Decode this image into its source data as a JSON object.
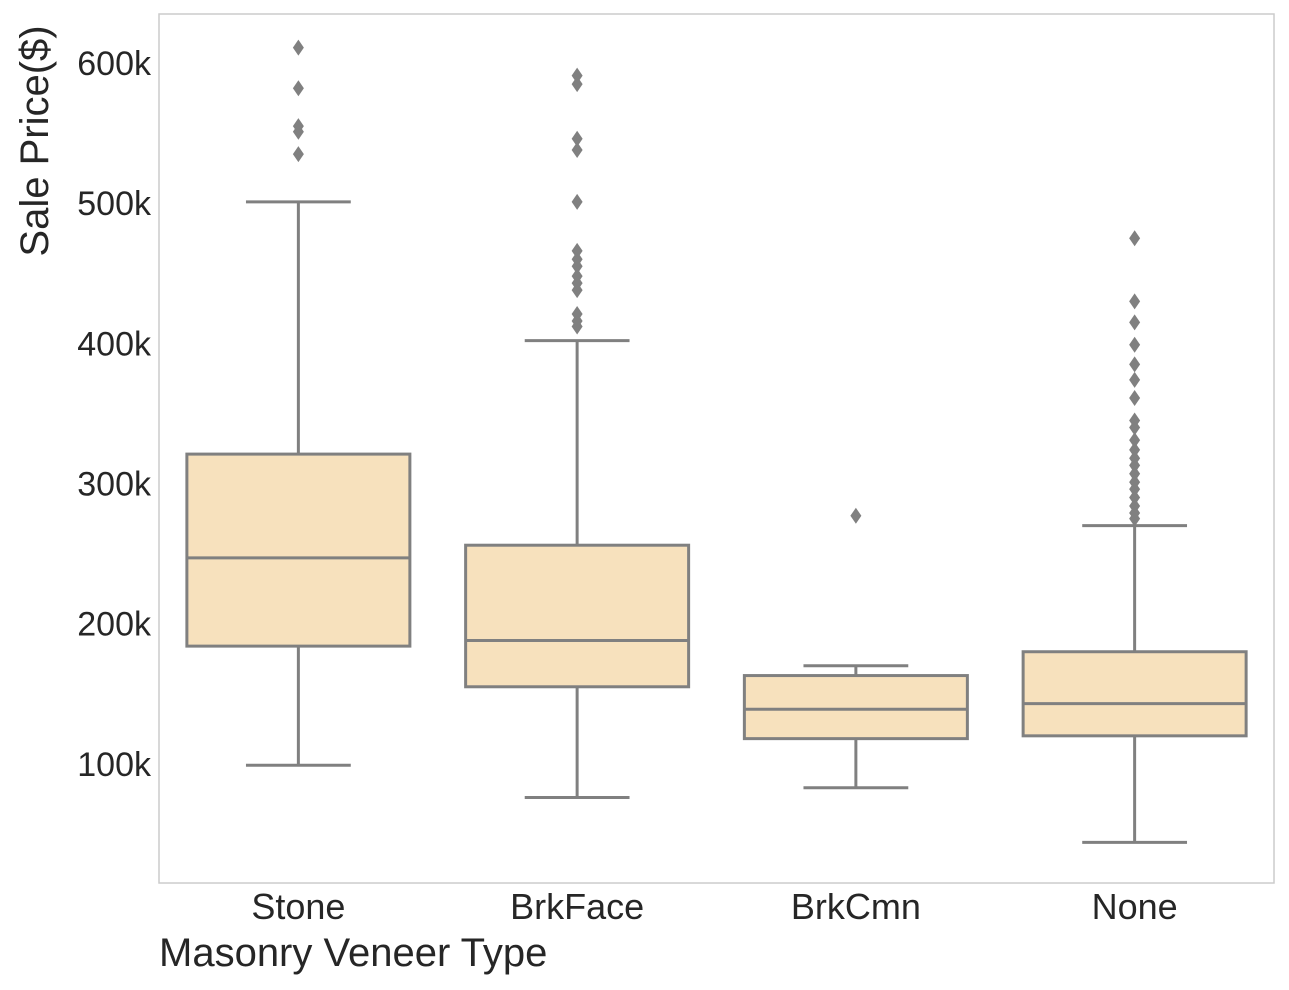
{
  "chart_data": {
    "type": "box",
    "title": "",
    "xlabel": "Masonry Veneer Type",
    "ylabel": "Sale Price($)",
    "ylim": [
      15000,
      635000
    ],
    "grid": false,
    "legend": "none",
    "yticks": [
      100000,
      200000,
      300000,
      400000,
      500000,
      600000
    ],
    "ytick_labels": [
      "100k",
      "200k",
      "300k",
      "400k",
      "500k",
      "600k"
    ],
    "categories": [
      "Stone",
      "BrkFace",
      "BrkCmn",
      "None"
    ],
    "boxes": [
      {
        "category": "Stone",
        "whisker_low": 99000,
        "q1": 184000,
        "median": 247000,
        "q3": 321000,
        "whisker_high": 501000,
        "outliers": [
          535000,
          551000,
          555000,
          582000,
          611000
        ]
      },
      {
        "category": "BrkFace",
        "whisker_low": 76000,
        "q1": 155000,
        "median": 188000,
        "q3": 256000,
        "whisker_high": 402000,
        "outliers": [
          412000,
          416000,
          421000,
          438000,
          443000,
          448000,
          455000,
          460000,
          466000,
          501000,
          538000,
          546000,
          585000,
          591000
        ]
      },
      {
        "category": "BrkCmn",
        "whisker_low": 83000,
        "q1": 118000,
        "median": 139000,
        "q3": 163000,
        "whisker_high": 170000,
        "outliers": [
          277000
        ]
      },
      {
        "category": "None",
        "whisker_low": 44000,
        "q1": 120000,
        "median": 143000,
        "q3": 180000,
        "whisker_high": 270000,
        "outliers": [
          275000,
          279000,
          284000,
          290000,
          296000,
          301000,
          307000,
          313000,
          318000,
          324000,
          331000,
          340000,
          345000,
          361000,
          374000,
          385000,
          399000,
          415000,
          430000,
          475000
        ]
      }
    ],
    "colors": {
      "box_fill": "#f7e1bd",
      "line": "#808080",
      "frame": "#cccccc",
      "text": "#262626"
    }
  }
}
